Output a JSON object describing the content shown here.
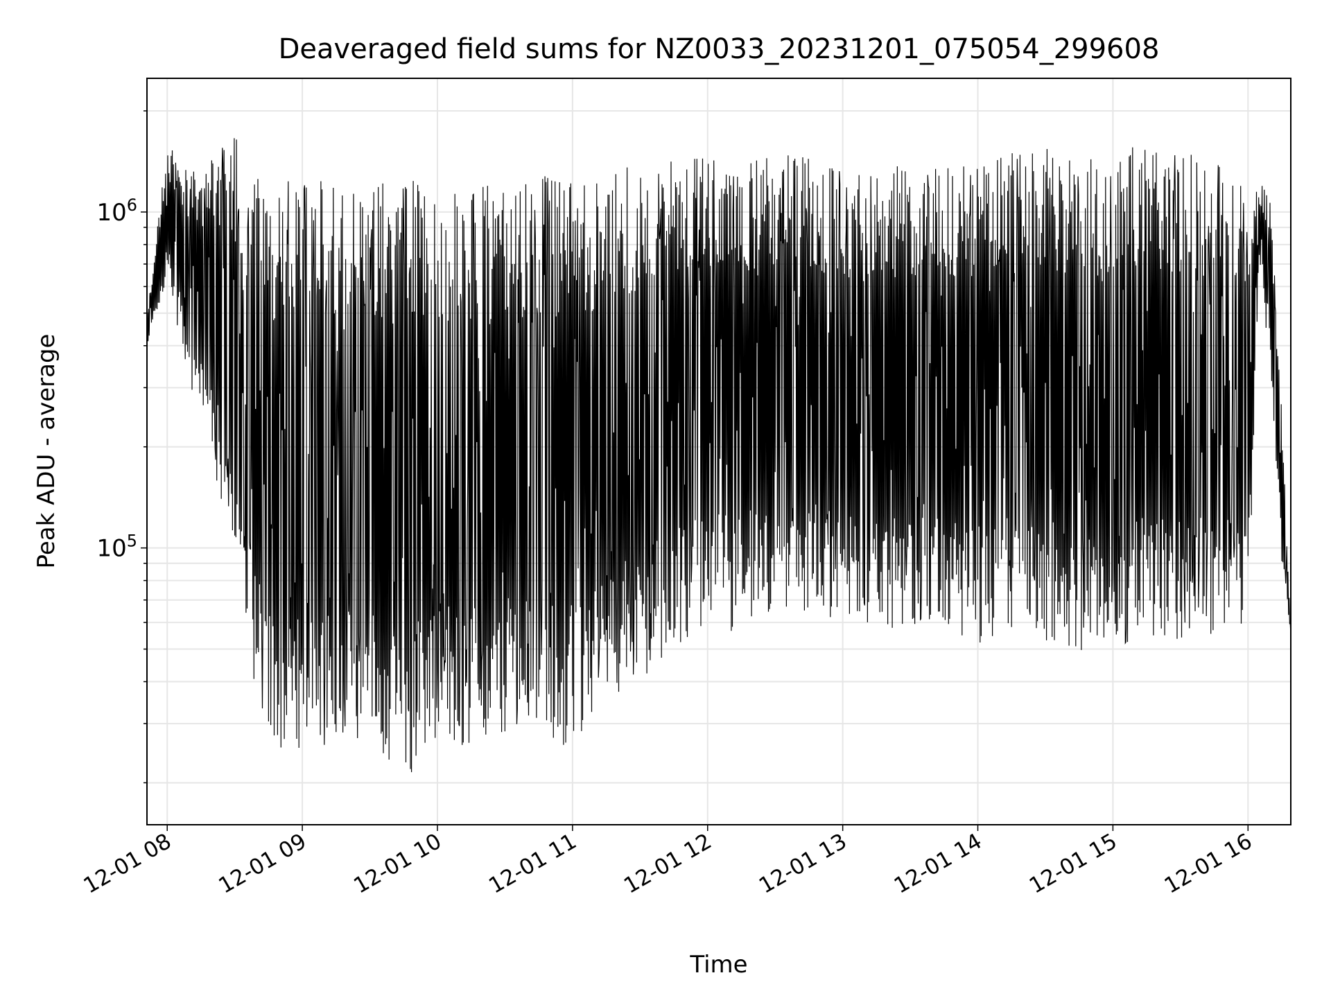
{
  "chart_data": {
    "type": "line",
    "title": "Deaveraged field sums for NZ0033_20231201_075054_299608",
    "xlabel": "Time",
    "ylabel": "Peak ADU - average",
    "yscale": "log",
    "grid": true,
    "xlim": [
      "2023-12-01 07:51",
      "2023-12-01 16:19"
    ],
    "ylim": [
      15000,
      2500000
    ],
    "x_ticks": [
      "12-01 08",
      "12-01 09",
      "12-01 10",
      "12-01 11",
      "12-01 12",
      "12-01 13",
      "12-01 14",
      "12-01 15",
      "12-01 16"
    ],
    "y_ticks": [
      {
        "value": 100000,
        "label": "10^5"
      },
      {
        "value": 1000000,
        "label": "10^6"
      }
    ],
    "series": [
      {
        "color": "#000000",
        "sample_interval_minutes": 1,
        "summary": "Dense oscillating time series between about 2e4 and 1.8e6; each interval's peak near 1e6-1.8e6 with troughs deepest (about 2e4-4e4) from 08:40 to 11:10, rising to about 5e4-1e5 after 11:30, falling to about 5.5e4 at the end",
        "x": [
          "2023-12-01 07:51",
          "2023-12-01 08:00",
          "2023-12-01 08:10",
          "2023-12-01 08:20",
          "2023-12-01 08:30",
          "2023-12-01 08:40",
          "2023-12-01 08:50",
          "2023-12-01 09:00",
          "2023-12-01 09:15",
          "2023-12-01 09:30",
          "2023-12-01 09:45",
          "2023-12-01 10:00",
          "2023-12-01 10:15",
          "2023-12-01 10:30",
          "2023-12-01 10:45",
          "2023-12-01 11:00",
          "2023-12-01 11:15",
          "2023-12-01 11:30",
          "2023-12-01 11:45",
          "2023-12-01 12:00",
          "2023-12-01 12:15",
          "2023-12-01 12:30",
          "2023-12-01 12:45",
          "2023-12-01 13:00",
          "2023-12-01 13:15",
          "2023-12-01 13:30",
          "2023-12-01 13:45",
          "2023-12-01 14:00",
          "2023-12-01 14:15",
          "2023-12-01 14:30",
          "2023-12-01 14:45",
          "2023-12-01 15:00",
          "2023-12-01 15:15",
          "2023-12-01 15:30",
          "2023-12-01 15:45",
          "2023-12-01 16:00",
          "2023-12-01 16:05",
          "2023-12-01 16:10",
          "2023-12-01 16:15",
          "2023-12-01 16:19"
        ],
        "upper": [
          500000,
          1600000,
          1300000,
          1500000,
          1700000,
          1300000,
          1200000,
          1300000,
          1250000,
          1250000,
          1300000,
          1250000,
          1200000,
          1200000,
          1300000,
          1250000,
          1300000,
          1400000,
          1500000,
          1500000,
          1400000,
          1500000,
          1500000,
          1350000,
          1400000,
          1400000,
          1400000,
          1450000,
          1500000,
          1550000,
          1500000,
          1550000,
          1600000,
          1500000,
          1450000,
          1300000,
          1250000,
          1100000,
          250000,
          55000
        ],
        "lower": [
          380000,
          650000,
          300000,
          180000,
          80000,
          35000,
          25000,
          22000,
          28000,
          25000,
          20000,
          27000,
          25000,
          28000,
          28000,
          25000,
          35000,
          40000,
          50000,
          60000,
          55000,
          60000,
          65000,
          58000,
          55000,
          60000,
          55000,
          52000,
          55000,
          52000,
          48000,
          50000,
          55000,
          52000,
          55000,
          60000,
          650000,
          350000,
          90000,
          55000
        ]
      }
    ]
  }
}
